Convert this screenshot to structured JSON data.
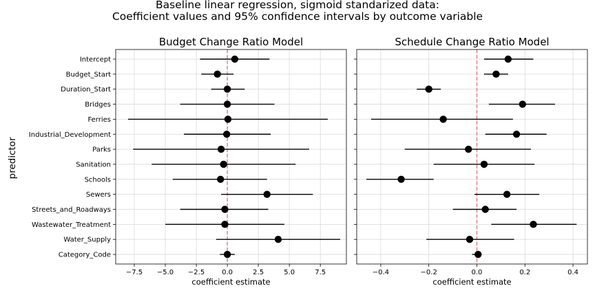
{
  "figure": {
    "suptitle_line1": "Baseline linear regression, sigmoid standarized data:",
    "suptitle_line2": "Coefficient values and 95% confidence intervals by outcome variable",
    "ylabel": "predictor"
  },
  "chart_data": [
    {
      "type": "scatter",
      "title": "Budget Change Ratio Model",
      "xlabel": "coefficient estimate",
      "ylabel": "predictor",
      "xlim": [
        -9.0,
        9.6
      ],
      "xticks": [
        -7.5,
        -5.0,
        -2.5,
        0.0,
        2.5,
        5.0,
        7.5
      ],
      "xtick_labels": [
        "−7.5",
        "−5.0",
        "−2.5",
        "0.0",
        "2.5",
        "5.0",
        "7.5"
      ],
      "grid": true,
      "reference_line": 0,
      "categories": [
        "Intercept",
        "Budget_Start",
        "Duration_Start",
        "Bridges",
        "Ferries",
        "Industrial_Development",
        "Parks",
        "Sanitation",
        "Schools",
        "Sewers",
        "Streets_and_Roadways",
        "Wastewater_Treatment",
        "Water_Supply",
        "Category_Code"
      ],
      "estimates": [
        0.6,
        -0.8,
        0.0,
        0.0,
        0.05,
        -0.05,
        -0.5,
        -0.3,
        -0.55,
        3.2,
        -0.2,
        -0.2,
        4.1,
        0.0
      ],
      "ci_low": [
        -2.2,
        -2.1,
        -1.3,
        -3.8,
        -8.0,
        -3.5,
        -7.6,
        -6.1,
        -4.4,
        -0.5,
        -3.8,
        -5.0,
        -0.9,
        -0.6
      ],
      "ci_high": [
        3.4,
        0.5,
        1.4,
        3.8,
        8.1,
        3.5,
        6.6,
        5.5,
        3.2,
        6.9,
        3.3,
        4.6,
        9.1,
        0.6
      ]
    },
    {
      "type": "scatter",
      "title": "Schedule Change Ratio Model",
      "xlabel": "coefficient estimate",
      "xlim": [
        -0.5,
        0.46
      ],
      "xticks": [
        -0.4,
        -0.2,
        0.0,
        0.2,
        0.4
      ],
      "xtick_labels": [
        "−0.4",
        "−0.2",
        "0.0",
        "0.2",
        "0.4"
      ],
      "grid": true,
      "reference_line": 0,
      "categories": [
        "Intercept",
        "Budget_Start",
        "Duration_Start",
        "Bridges",
        "Ferries",
        "Industrial_Development",
        "Parks",
        "Sanitation",
        "Schools",
        "Sewers",
        "Streets_and_Roadways",
        "Wastewater_Treatment",
        "Water_Supply",
        "Category_Code"
      ],
      "estimates": [
        0.13,
        0.08,
        -0.2,
        0.19,
        -0.14,
        0.165,
        -0.035,
        0.03,
        -0.315,
        0.125,
        0.035,
        0.235,
        -0.03,
        0.005
      ],
      "ci_low": [
        0.03,
        0.03,
        -0.25,
        0.05,
        -0.44,
        0.035,
        -0.3,
        -0.18,
        -0.46,
        -0.01,
        -0.1,
        0.06,
        -0.21,
        -0.02
      ],
      "ci_high": [
        0.235,
        0.13,
        -0.15,
        0.325,
        0.15,
        0.29,
        0.225,
        0.24,
        -0.18,
        0.26,
        0.165,
        0.415,
        0.155,
        0.02
      ]
    }
  ]
}
